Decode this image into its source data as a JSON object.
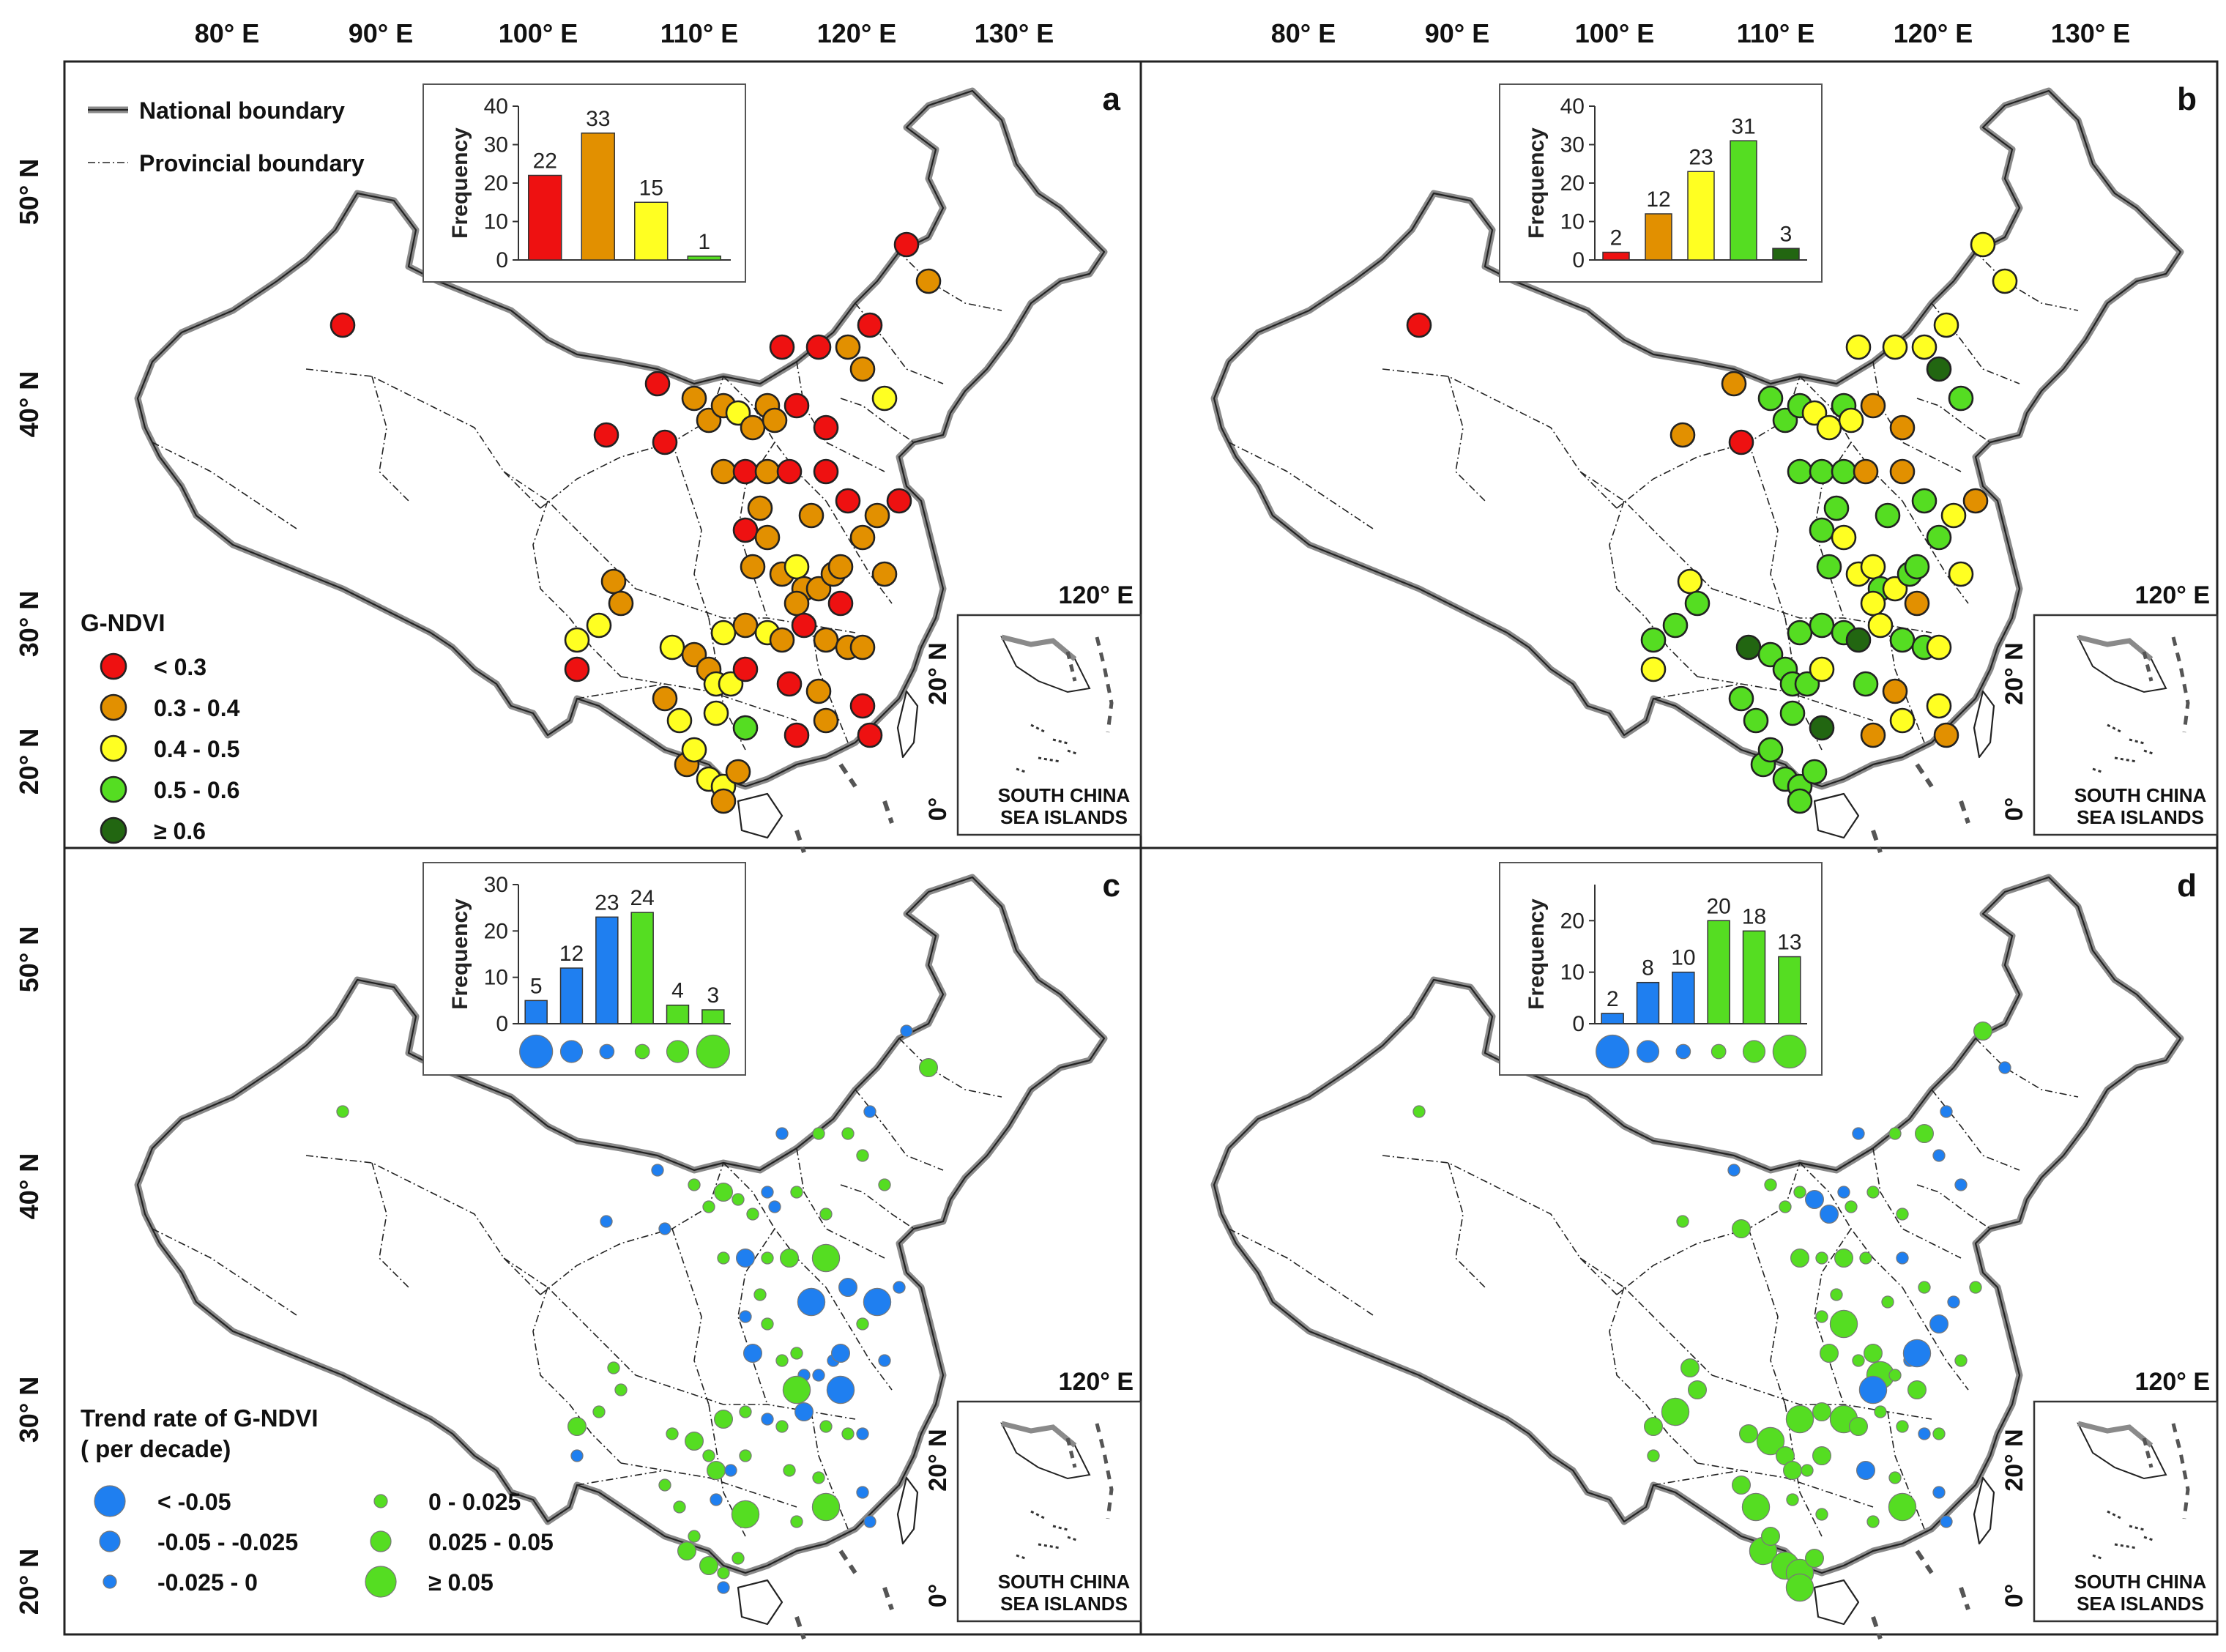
{
  "top_axis_ticks": [
    "80° E",
    "90° E",
    "100° E",
    "110° E",
    "120° E",
    "130° E"
  ],
  "left_axis_top": [
    "50° N",
    "40° N",
    "30° N",
    "20° N"
  ],
  "left_axis_bottom": [
    "50° N",
    "40° N",
    "30° N",
    "20° N"
  ],
  "colors": {
    "red": "#ee1111",
    "orange": "#e29000",
    "yellow": "#ffff22",
    "green": "#55dd22",
    "darkgreen": "#226611",
    "blue": "#1f7ff0",
    "trend_green": "#55dd22"
  },
  "boundary_legend": {
    "national": "National boundary",
    "provincial": "Provincial boundary"
  },
  "gndvi_legend": {
    "title": "G-NDVI",
    "items": [
      {
        "label": "< 0.3",
        "color": "#ee1111"
      },
      {
        "label": "0.3 - 0.4",
        "color": "#e29000"
      },
      {
        "label": "0.4 - 0.5",
        "color": "#ffff22"
      },
      {
        "label": "0.5 - 0.6",
        "color": "#55dd22"
      },
      {
        "label": "≥ 0.6",
        "color": "#226611"
      }
    ]
  },
  "trend_legend": {
    "title_line1": "Trend rate of G-NDVI",
    "title_line2": "( per decade)",
    "items": [
      {
        "label": "< -0.05",
        "color": "#1f7ff0",
        "size": "large"
      },
      {
        "label": "-0.05 - -0.025",
        "color": "#1f7ff0",
        "size": "medium"
      },
      {
        "label": "-0.025 - 0",
        "color": "#1f7ff0",
        "size": "small"
      },
      {
        "label": "0 - 0.025",
        "color": "#55dd22",
        "size": "small"
      },
      {
        "label": "0.025 - 0.05",
        "color": "#55dd22",
        "size": "medium"
      },
      {
        "label": "≥ 0.05",
        "color": "#55dd22",
        "size": "large"
      }
    ]
  },
  "inset": {
    "lon_label": "120° E",
    "lat_20": "20° N",
    "lat_0": "0°",
    "caption_line1": "SOUTH CHINA",
    "caption_line2": "SEA ISLANDS"
  },
  "panels": [
    {
      "letter": "a"
    },
    {
      "letter": "b"
    },
    {
      "letter": "c"
    },
    {
      "letter": "d"
    }
  ],
  "chart_data": [
    {
      "type": "bar",
      "panel": "a",
      "ylabel": "Frequency",
      "ylim": [
        0,
        40
      ],
      "yticks": [
        0,
        10,
        20,
        30,
        40
      ],
      "categories": [
        "< 0.3",
        "0.3 - 0.4",
        "0.4 - 0.5",
        "0.5 - 0.6"
      ],
      "values": [
        22,
        33,
        15,
        1
      ],
      "colors": [
        "#ee1111",
        "#e29000",
        "#ffff22",
        "#55dd22"
      ]
    },
    {
      "type": "bar",
      "panel": "b",
      "ylabel": "Frequency",
      "ylim": [
        0,
        40
      ],
      "yticks": [
        0,
        10,
        20,
        30,
        40
      ],
      "categories": [
        "< 0.3",
        "0.3 - 0.4",
        "0.4 - 0.5",
        "0.5 - 0.6",
        "≥ 0.6"
      ],
      "values": [
        2,
        12,
        23,
        31,
        3
      ],
      "colors": [
        "#ee1111",
        "#e29000",
        "#ffff22",
        "#55dd22",
        "#226611"
      ]
    },
    {
      "type": "bar",
      "panel": "c",
      "ylabel": "Frequency",
      "ylim": [
        0,
        30
      ],
      "yticks": [
        0,
        10,
        20,
        30
      ],
      "categories": [
        "< -0.05",
        "-0.05 - -0.025",
        "-0.025 - 0",
        "0 - 0.025",
        "0.025 - 0.05",
        "≥ 0.05"
      ],
      "values": [
        5,
        12,
        23,
        24,
        4,
        3
      ],
      "colors": [
        "#1f7ff0",
        "#1f7ff0",
        "#1f7ff0",
        "#55dd22",
        "#55dd22",
        "#55dd22"
      ]
    },
    {
      "type": "bar",
      "panel": "d",
      "ylabel": "Frequency",
      "ylim": [
        0,
        27
      ],
      "yticks": [
        0,
        10,
        20
      ],
      "categories": [
        "< -0.05",
        "-0.05 - -0.025",
        "-0.025 - 0",
        "0 - 0.025",
        "0.025 - 0.05",
        "≥ 0.05"
      ],
      "values": [
        2,
        8,
        10,
        20,
        18,
        13
      ],
      "colors": [
        "#1f7ff0",
        "#1f7ff0",
        "#1f7ff0",
        "#55dd22",
        "#55dd22",
        "#55dd22"
      ]
    }
  ]
}
